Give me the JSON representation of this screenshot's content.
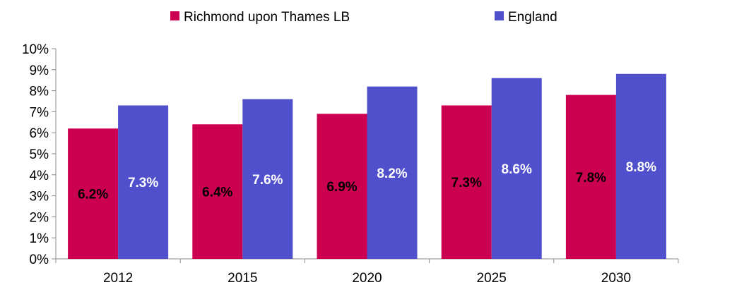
{
  "chart_data": {
    "type": "bar",
    "categories": [
      "2012",
      "2015",
      "2020",
      "2025",
      "2030"
    ],
    "series": [
      {
        "name": "Richmond upon Thames LB",
        "values": [
          6.2,
          6.4,
          6.9,
          7.3,
          7.8
        ],
        "labels": [
          "6.2%",
          "6.4%",
          "6.9%",
          "7.3%",
          "7.8%"
        ],
        "color": "#cc0050",
        "label_color": "#000000"
      },
      {
        "name": "England",
        "values": [
          7.3,
          7.6,
          8.2,
          8.6,
          8.8
        ],
        "labels": [
          "7.3%",
          "7.6%",
          "8.2%",
          "8.6%",
          "8.8%"
        ],
        "color": "#5050cc",
        "label_color": "#ffffff"
      }
    ],
    "y_ticks": [
      "0%",
      "1%",
      "2%",
      "3%",
      "4%",
      "5%",
      "6%",
      "7%",
      "8%",
      "9%",
      "10%"
    ],
    "ylim": [
      0,
      10
    ],
    "grid": false,
    "legend_position": "top"
  }
}
